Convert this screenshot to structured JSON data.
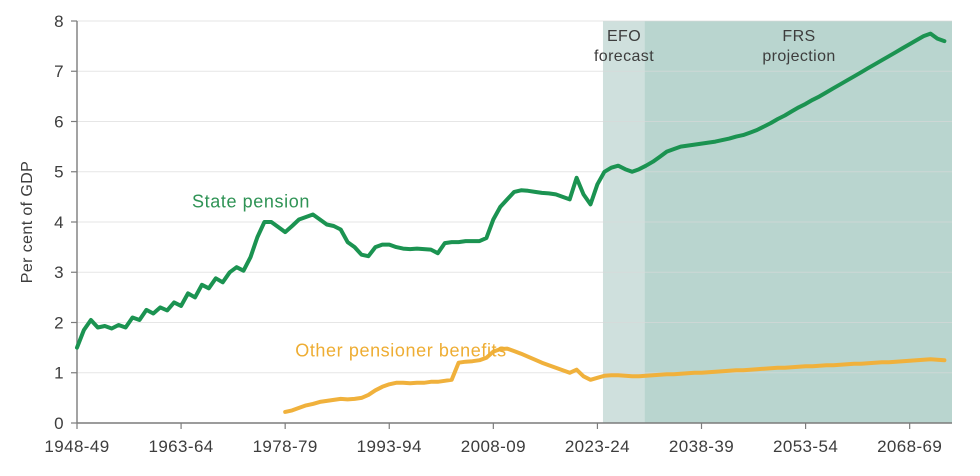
{
  "chart_data": {
    "type": "line",
    "title": "",
    "ylabel": "Per cent of GDP",
    "xlabel": "",
    "ylim": [
      0,
      8
    ],
    "y_ticks": [
      0,
      1,
      2,
      3,
      4,
      5,
      6,
      7,
      8
    ],
    "x_range_years": [
      1948,
      2074.1
    ],
    "x_ticks": [
      {
        "year": 1948,
        "label": "1948-49"
      },
      {
        "year": 1963,
        "label": "1963-64"
      },
      {
        "year": 1978,
        "label": "1978-79"
      },
      {
        "year": 1993,
        "label": "1993-94"
      },
      {
        "year": 2008,
        "label": "2008-09"
      },
      {
        "year": 2023,
        "label": "2023-24"
      },
      {
        "year": 2038,
        "label": "2038-39"
      },
      {
        "year": 2053,
        "label": "2053-54"
      },
      {
        "year": 2068,
        "label": "2068-69"
      }
    ],
    "grid": "horizontal",
    "legend_position": "inline-annotations",
    "regions": [
      {
        "id": "efo",
        "label_line1": "EFO",
        "label_line2": "forecast",
        "start_year": 2023.8,
        "end_year": 2029.8,
        "color": "#cfe0dd"
      },
      {
        "id": "frs",
        "label_line1": "FRS",
        "label_line2": "projection",
        "start_year": 2029.8,
        "end_year": 2074.1,
        "color": "#b9d5cf"
      }
    ],
    "series": [
      {
        "name": "State pension",
        "color": "#1b9351",
        "start_year": 1948,
        "values": [
          1.5,
          1.85,
          2.05,
          1.9,
          1.93,
          1.88,
          1.95,
          1.9,
          2.1,
          2.05,
          2.25,
          2.18,
          2.3,
          2.24,
          2.4,
          2.33,
          2.58,
          2.5,
          2.75,
          2.68,
          2.88,
          2.8,
          3.0,
          3.1,
          3.03,
          3.3,
          3.7,
          4.0,
          4.0,
          3.9,
          3.8,
          3.92,
          4.05,
          4.1,
          4.15,
          4.05,
          3.95,
          3.92,
          3.85,
          3.6,
          3.5,
          3.35,
          3.32,
          3.5,
          3.55,
          3.55,
          3.5,
          3.47,
          3.46,
          3.47,
          3.46,
          3.45,
          3.38,
          3.58,
          3.6,
          3.6,
          3.62,
          3.62,
          3.62,
          3.68,
          4.05,
          4.3,
          4.45,
          4.6,
          4.63,
          4.62,
          4.6,
          4.58,
          4.57,
          4.55,
          4.5,
          4.45,
          4.88,
          4.55,
          4.35,
          4.75,
          5.0,
          5.08,
          5.12,
          5.05,
          5.0,
          5.05,
          5.12,
          5.2,
          5.3,
          5.4,
          5.45,
          5.5,
          5.52,
          5.54,
          5.56,
          5.58,
          5.6,
          5.63,
          5.66,
          5.7,
          5.73,
          5.78,
          5.83,
          5.9,
          5.97,
          6.05,
          6.12,
          6.2,
          6.28,
          6.35,
          6.43,
          6.5,
          6.58,
          6.66,
          6.74,
          6.82,
          6.9,
          6.98,
          7.06,
          7.14,
          7.22,
          7.3,
          7.38,
          7.46,
          7.54,
          7.62,
          7.7,
          7.75,
          7.65,
          7.6
        ]
      },
      {
        "name": "Other pensioner benefits",
        "color": "#f0b13c",
        "start_year": 1978,
        "values": [
          0.22,
          0.25,
          0.3,
          0.35,
          0.38,
          0.42,
          0.44,
          0.46,
          0.48,
          0.47,
          0.48,
          0.5,
          0.56,
          0.65,
          0.72,
          0.77,
          0.8,
          0.8,
          0.79,
          0.8,
          0.8,
          0.82,
          0.82,
          0.84,
          0.86,
          1.2,
          1.22,
          1.23,
          1.25,
          1.3,
          1.42,
          1.47,
          1.48,
          1.43,
          1.38,
          1.32,
          1.26,
          1.2,
          1.15,
          1.1,
          1.05,
          1.0,
          1.06,
          0.93,
          0.86,
          0.9,
          0.94,
          0.95,
          0.95,
          0.94,
          0.93,
          0.93,
          0.94,
          0.95,
          0.96,
          0.97,
          0.97,
          0.98,
          0.99,
          1.0,
          1.0,
          1.01,
          1.02,
          1.03,
          1.04,
          1.05,
          1.05,
          1.06,
          1.07,
          1.08,
          1.09,
          1.1,
          1.1,
          1.11,
          1.12,
          1.13,
          1.13,
          1.14,
          1.15,
          1.15,
          1.16,
          1.17,
          1.18,
          1.18,
          1.19,
          1.2,
          1.21,
          1.21,
          1.22,
          1.23,
          1.24,
          1.25,
          1.26,
          1.27,
          1.26,
          1.25
        ]
      }
    ],
    "axis_colors": {
      "axis_line": "#7c7c7c",
      "gridline": "#d9d9d9",
      "tick_text": "#3d3d3d"
    }
  }
}
